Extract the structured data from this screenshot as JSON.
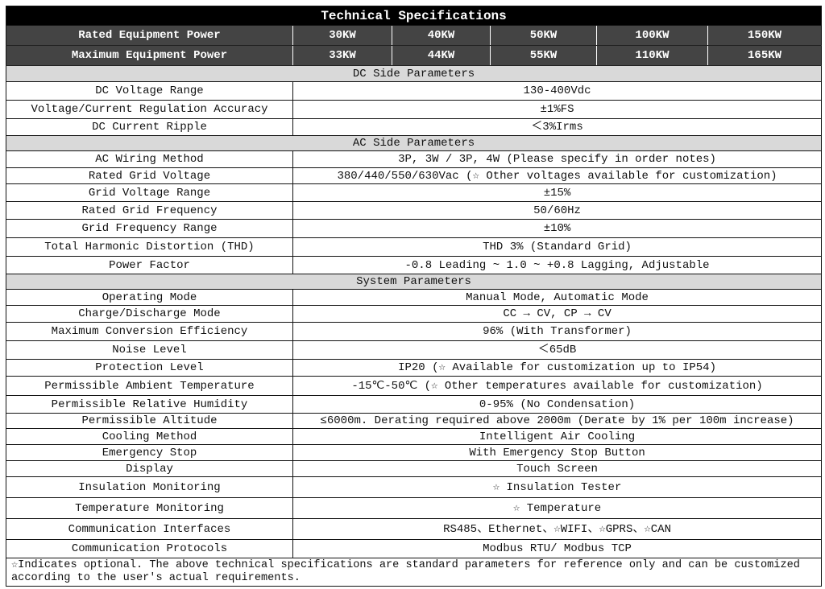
{
  "title": "Technical Specifications",
  "power_rows": [
    {
      "label": "Rated Equipment Power",
      "values": [
        "30KW",
        "40KW",
        "50KW",
        "100KW",
        "150KW"
      ]
    },
    {
      "label": "Maximum Equipment Power",
      "values": [
        "33KW",
        "44KW",
        "55KW",
        "110KW",
        "165KW"
      ]
    }
  ],
  "sections": [
    {
      "title": "DC Side Parameters",
      "rows": [
        {
          "label": "DC Voltage Range",
          "value": "130-400Vdc"
        },
        {
          "label": "Voltage/Current Regulation Accuracy",
          "value": "±1%FS"
        },
        {
          "label": "DC Current Ripple",
          "value": "＜3%Irms"
        }
      ]
    },
    {
      "title": "AC Side Parameters",
      "rows": [
        {
          "label": "AC Wiring Method",
          "value": "3P, 3W / 3P, 4W (Please specify in order notes)"
        },
        {
          "label": "Rated Grid Voltage",
          "value": "380/440/550/630Vac (☆ Other voltages available for customization)"
        },
        {
          "label": "Grid Voltage Range",
          "value": "±15%"
        },
        {
          "label": "Rated Grid Frequency",
          "value": "50/60Hz"
        },
        {
          "label": "Grid Frequency Range",
          "value": "±10%"
        },
        {
          "label": "Total Harmonic Distortion (THD)",
          "value": "THD 3% (Standard Grid)"
        },
        {
          "label": "Power Factor",
          "value": "-0.8 Leading ~ 1.0 ~ +0.8 Lagging, Adjustable"
        }
      ]
    },
    {
      "title": "System Parameters",
      "rows": [
        {
          "label": "Operating Mode",
          "value": "Manual Mode, Automatic Mode"
        },
        {
          "label": "Charge/Discharge Mode",
          "value": "CC → CV, CP → CV"
        },
        {
          "label": "Maximum Conversion Efficiency",
          "value": "96% (With Transformer)"
        },
        {
          "label": "Noise Level",
          "value": "＜65dB"
        },
        {
          "label": "Protection Level",
          "value": "IP20 (☆ Available for customization up to IP54)"
        },
        {
          "label": "Permissible Ambient Temperature",
          "value": "-15℃-50℃ (☆ Other temperatures available for customization)"
        },
        {
          "label": "Permissible Relative Humidity",
          "value": "0-95% (No Condensation)"
        },
        {
          "label": "Permissible Altitude",
          "value": "≤6000m. Derating required above 2000m (Derate by 1% per 100m increase)"
        },
        {
          "label": "Cooling Method",
          "value": "Intelligent Air Cooling"
        },
        {
          "label": "Emergency Stop",
          "value": "With Emergency Stop Button"
        },
        {
          "label": "Display",
          "value": "Touch Screen"
        },
        {
          "label": "Insulation Monitoring",
          "value": "☆ Insulation Tester"
        },
        {
          "label": "Temperature Monitoring",
          "value": "☆ Temperature"
        },
        {
          "label": "Communication Interfaces",
          "value": "RS485、Ethernet、☆WIFI、☆GPRS、☆CAN"
        },
        {
          "label": "Communication Protocols",
          "value": "Modbus RTU/ Modbus TCP"
        }
      ]
    }
  ],
  "note": "☆Indicates optional. The above technical specifications are standard parameters for reference only and can be customized according to the user's actual requirements."
}
